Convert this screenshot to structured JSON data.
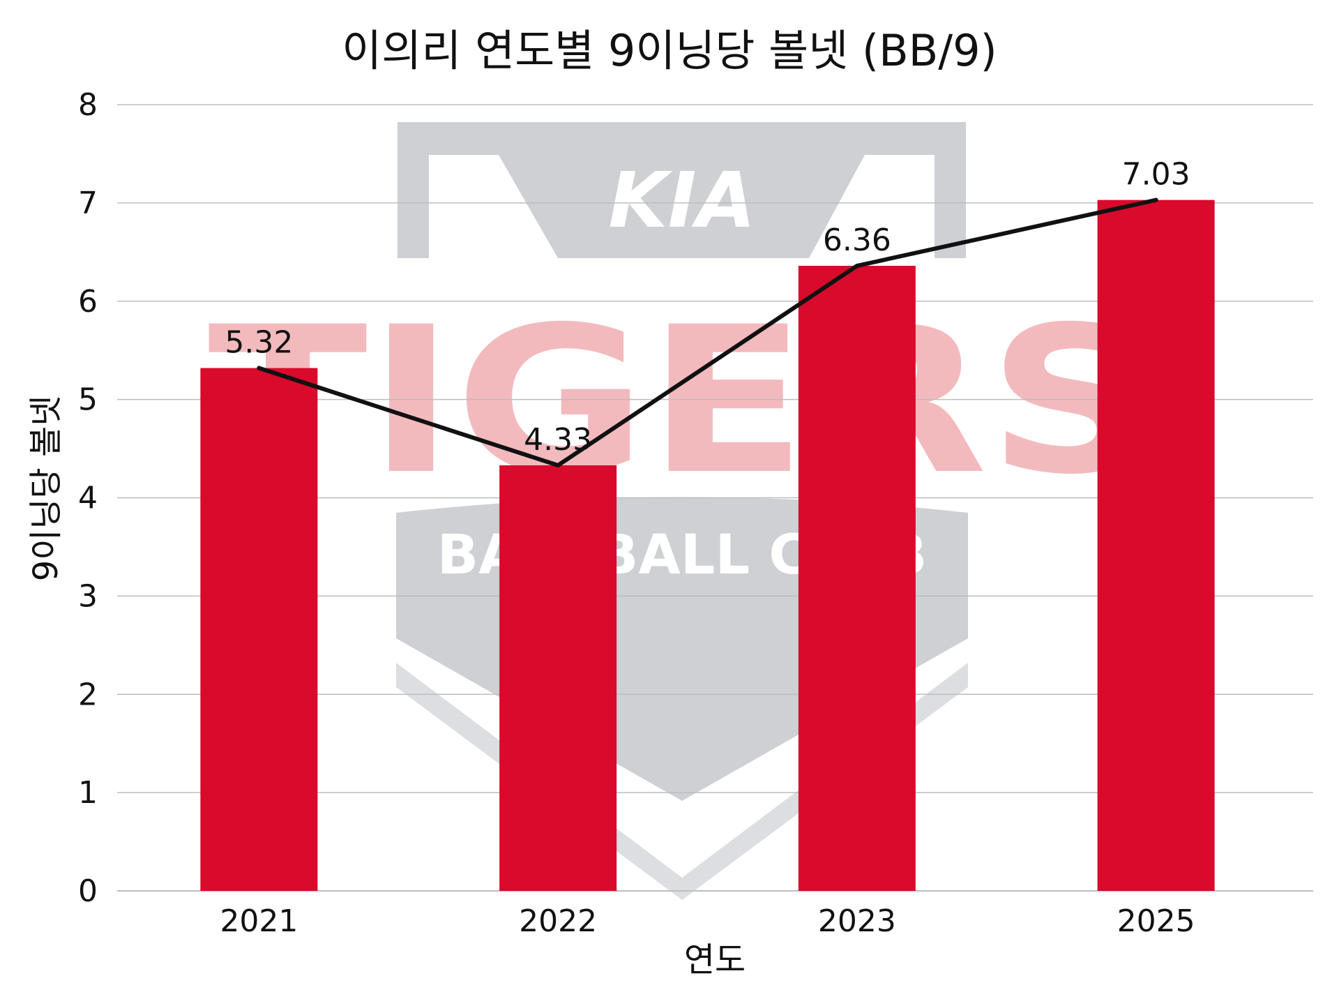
{
  "chart_data": {
    "type": "bar",
    "title": "이의리 연도별 9이닝당 볼넷 (BB/9)",
    "xlabel": "연도",
    "ylabel": "9이닝당 볼넷",
    "categories": [
      "2021",
      "2022",
      "2023",
      "2025"
    ],
    "series": [
      {
        "type": "bar",
        "values": [
          5.32,
          4.33,
          6.36,
          7.03
        ],
        "color": "#D90A2C"
      },
      {
        "type": "line",
        "values": [
          5.32,
          4.33,
          6.36,
          7.03
        ],
        "color": "#111111"
      }
    ],
    "data_labels": [
      "5.32",
      "4.33",
      "6.36",
      "7.03"
    ],
    "ylim": [
      0,
      8
    ],
    "yticks": [
      0,
      1,
      2,
      3,
      4,
      5,
      6,
      7,
      8
    ],
    "grid": true,
    "legend": "none"
  },
  "watermark": {
    "logo_text": "KIA",
    "team_text": "TIGERS",
    "club_text": "BASEBALL CLUB"
  },
  "colors": {
    "bar": "#D90A2C",
    "line": "#111111",
    "grid": "#BDBDBD",
    "watermark_gray": "#C9CCD0",
    "watermark_red": "#F2B3B8"
  }
}
